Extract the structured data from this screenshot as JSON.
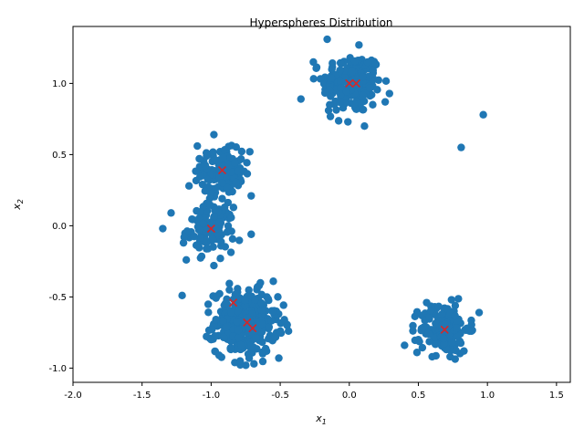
{
  "chart_data": {
    "type": "scatter",
    "title": "Hyperspheres Distribution",
    "xlabel": "x",
    "xlabel_sub": "1",
    "ylabel": "x",
    "ylabel_sub": "2",
    "xlim": [
      -2.0,
      1.6
    ],
    "ylim": [
      -1.1,
      1.4
    ],
    "xticks": [
      "-2.0",
      "-1.5",
      "-1.0",
      "-0.5",
      "0.0",
      "0.5",
      "1.0",
      "1.5"
    ],
    "yticks": [
      "-1.0",
      "-0.5",
      "0.0",
      "0.5",
      "1.0"
    ],
    "xtick_values": [
      -2.0,
      -1.5,
      -1.0,
      -0.5,
      0.0,
      0.5,
      1.0,
      1.5
    ],
    "ytick_values": [
      -1.0,
      -0.5,
      0.0,
      0.5,
      1.0
    ],
    "grid": false,
    "point_color": "#1f77b4",
    "centroid_color": "#d62728",
    "clusters": [
      {
        "center": [
          0.02,
          1.0
        ],
        "radius": 0.28,
        "points": 220
      },
      {
        "center": [
          -0.92,
          0.38
        ],
        "radius": 0.2,
        "points": 150
      },
      {
        "center": [
          -1.0,
          -0.02
        ],
        "radius": 0.22,
        "points": 130
      },
      {
        "center": [
          -0.75,
          -0.68
        ],
        "radius": 0.3,
        "points": 320
      },
      {
        "center": [
          0.69,
          -0.72
        ],
        "radius": 0.23,
        "points": 160
      }
    ],
    "sampled_points": [
      [
        -0.16,
        1.31
      ],
      [
        0.07,
        1.27
      ],
      [
        -0.35,
        0.89
      ],
      [
        -0.26,
        1.15
      ],
      [
        -0.15,
        0.81
      ],
      [
        0.26,
        0.87
      ],
      [
        0.11,
        0.7
      ],
      [
        -0.01,
        0.73
      ],
      [
        -0.98,
        0.64
      ],
      [
        -1.1,
        0.56
      ],
      [
        -0.72,
        0.52
      ],
      [
        -1.16,
        0.28
      ],
      [
        -0.71,
        0.21
      ],
      [
        -0.92,
        0.19
      ],
      [
        -1.35,
        -0.02
      ],
      [
        -1.29,
        0.09
      ],
      [
        -1.2,
        -0.12
      ],
      [
        -1.18,
        -0.24
      ],
      [
        -0.98,
        -0.28
      ],
      [
        -0.71,
        -0.06
      ],
      [
        -1.21,
        -0.49
      ],
      [
        -0.55,
        -0.39
      ],
      [
        -0.47,
        -0.66
      ],
      [
        -0.44,
        -0.74
      ],
      [
        -0.51,
        -0.93
      ],
      [
        -0.69,
        -0.97
      ],
      [
        -0.79,
        -0.95
      ],
      [
        -1.0,
        -0.8
      ],
      [
        0.4,
        -0.84
      ],
      [
        0.49,
        -0.89
      ],
      [
        0.56,
        -0.54
      ],
      [
        0.74,
        -0.52
      ],
      [
        0.94,
        -0.61
      ],
      [
        0.87,
        -0.74
      ],
      [
        0.73,
        -0.92
      ],
      [
        0.83,
        -0.88
      ],
      [
        0.6,
        -0.92
      ],
      [
        0.5,
        -0.8
      ],
      [
        0.97,
        0.78
      ],
      [
        0.81,
        0.55
      ]
    ],
    "centroids": [
      [
        0.0,
        1.0
      ],
      [
        0.05,
        1.0
      ],
      [
        -0.92,
        0.39
      ],
      [
        -1.0,
        -0.02
      ],
      [
        -0.84,
        -0.54
      ],
      [
        -0.74,
        -0.68
      ],
      [
        -0.7,
        -0.72
      ],
      [
        0.69,
        -0.73
      ]
    ]
  }
}
